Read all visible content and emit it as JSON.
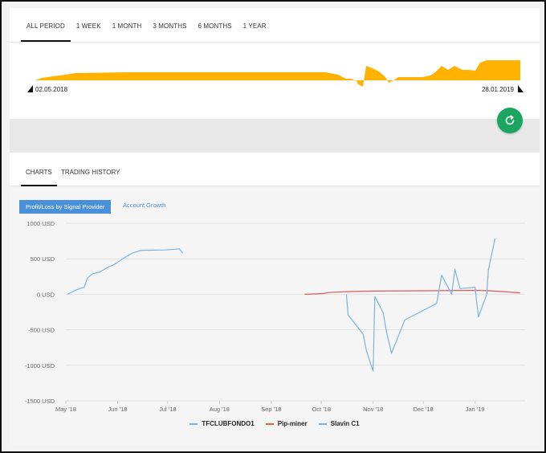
{
  "period_tabs": [
    "ALL PERIOD",
    "1 WEEK",
    "1 MONTH",
    "3 MONTHS",
    "6 MONTHS",
    "1 YEAR"
  ],
  "range": {
    "start_date": "02.05.2018",
    "end_date": "28.01.2019",
    "color": "#ffb300"
  },
  "chart_tabs": [
    "CHARTS",
    "TRADING HISTORY"
  ],
  "chart_modes": {
    "active": "Profit/Loss by Signal Provider",
    "inactive": "Account Growth"
  },
  "colors": {
    "accent": "#4a90d9",
    "refresh": "#1aa561",
    "tfclub": "#7ab3e0",
    "pip": "#e05a5a",
    "slavin": "#7ab3e0"
  },
  "chart_data": {
    "type": "line",
    "title": "",
    "xlabel": "",
    "ylabel": "",
    "x_ticks": [
      "May '18",
      "Jun '18",
      "Jul '18",
      "Aug '18",
      "Sep '18",
      "Oct '18",
      "Nov '18",
      "Dec '18",
      "Jan '19"
    ],
    "y_ticks": [
      "1000 USD",
      "500 USD",
      "0 USD",
      "-500 USD",
      "-1000 USD",
      "-1500 USD"
    ],
    "ylim": [
      -1500,
      1000
    ],
    "grid": true,
    "legend_position": "bottom",
    "series": [
      {
        "name": "TFCLUBFONDO1",
        "x": [
          "2018-05-02",
          "2018-05-07",
          "2018-05-12",
          "2018-05-14",
          "2018-05-17",
          "2018-05-21",
          "2018-05-27",
          "2018-05-30",
          "2018-06-06",
          "2018-06-10",
          "2018-06-15",
          "2018-06-30",
          "2018-07-08",
          "2018-07-10"
        ],
        "values": [
          0,
          60,
          100,
          230,
          290,
          310,
          390,
          420,
          530,
          580,
          620,
          625,
          640,
          580
        ]
      },
      {
        "name": "Pip-miner",
        "x": [
          "2018-09-21",
          "2018-10-02",
          "2018-10-05",
          "2018-10-20",
          "2018-11-01",
          "2018-12-01",
          "2019-01-01",
          "2019-01-10",
          "2019-01-28"
        ],
        "values": [
          0,
          10,
          25,
          40,
          45,
          50,
          55,
          50,
          20
        ]
      },
      {
        "name": "Slavin C1",
        "x": [
          "2018-10-16",
          "2018-10-17",
          "2018-10-26",
          "2018-10-28",
          "2018-11-01",
          "2018-11-02",
          "2018-11-07",
          "2018-11-09",
          "2018-11-12",
          "2018-11-20",
          "2018-12-09",
          "2018-12-12",
          "2018-12-18",
          "2018-12-20",
          "2018-12-23",
          "2019-01-01",
          "2019-01-03",
          "2019-01-08",
          "2019-01-09",
          "2019-01-13"
        ],
        "values": [
          0,
          -290,
          -560,
          -800,
          -1080,
          -30,
          -260,
          -530,
          -830,
          -360,
          -130,
          270,
          0,
          350,
          80,
          100,
          -320,
          0,
          340,
          790
        ]
      }
    ]
  }
}
